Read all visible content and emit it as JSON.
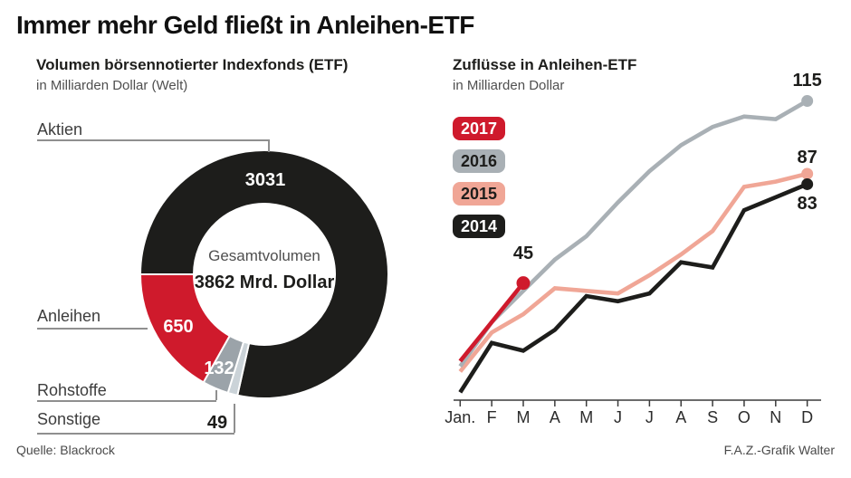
{
  "title": "Immer mehr Geld fließt in Anleihen-ETF",
  "source": "Quelle: Blackrock",
  "credit": "F.A.Z.-Grafik Walter",
  "chart_data": [
    {
      "type": "pie",
      "donut": true,
      "title": "Volumen börsennotierter Indexfonds (ETF)",
      "subtitle": "in Milliarden Dollar (Welt)",
      "center": {
        "label": "Gesamtvolumen",
        "value": "3862 Mrd. Dollar"
      },
      "total": 3862,
      "slices": [
        {
          "label": "Aktien",
          "value": 3031,
          "color": "#1d1d1b"
        },
        {
          "label": "Anleihen",
          "value": 650,
          "color": "#cf1a2c"
        },
        {
          "label": "Rohstoffe",
          "value": 132,
          "color": "#9ba3a9"
        },
        {
          "label": "Sonstige",
          "value": 49,
          "color": "#cbd3d8"
        }
      ]
    },
    {
      "type": "line",
      "title": "Zuflüsse in Anleihen-ETF",
      "subtitle": "in Milliarden Dollar",
      "categories": [
        "Jan.",
        "F",
        "M",
        "A",
        "M",
        "J",
        "J",
        "A",
        "S",
        "O",
        "N",
        "D"
      ],
      "series": [
        {
          "name": "2017",
          "color": "#cf1a2c",
          "text_color": "#ffffff",
          "values": [
            15,
            30,
            45
          ],
          "end_label": "45"
        },
        {
          "name": "2016",
          "color": "#a9b0b5",
          "text_color": "#1d1d1b",
          "values": [
            13,
            30,
            42,
            54,
            63,
            76,
            88,
            98,
            105,
            109,
            108,
            115
          ],
          "end_label": "115"
        },
        {
          "name": "2015",
          "color": "#f0a696",
          "text_color": "#1d1d1b",
          "values": [
            11,
            26,
            33,
            43,
            42,
            41,
            48,
            56,
            65,
            82,
            84,
            87
          ],
          "end_label": "87"
        },
        {
          "name": "2014",
          "color": "#1d1d1b",
          "text_color": "#ffffff",
          "values": [
            3,
            22,
            19,
            27,
            40,
            38,
            41,
            53,
            51,
            73,
            78,
            83
          ],
          "end_label": "83"
        }
      ],
      "xlabel": "",
      "ylabel": "",
      "ylim": [
        0,
        125
      ],
      "grid": false,
      "legend_position": "top-left"
    }
  ]
}
